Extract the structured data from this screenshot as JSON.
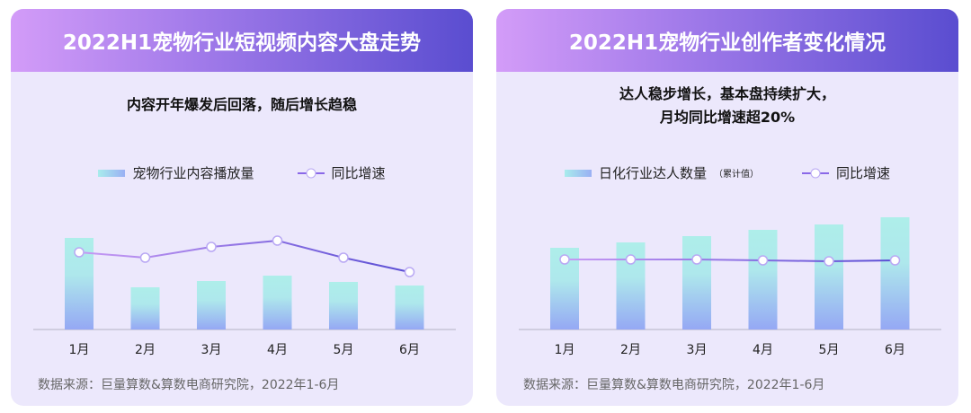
{
  "panels": [
    {
      "title": "2022H1宠物行业短视频内容大盘走势",
      "subtitle": [
        "内容开年爆发后回落，随后增长趋稳"
      ],
      "legend_bar": "宠物行业内容播放量",
      "legend_bar_note": "",
      "legend_line": "同比增速",
      "source": "数据来源：巨量算数&算数电商研究院，2022年1-6月"
    },
    {
      "title": "2022H1宠物行业创作者变化情况",
      "subtitle": [
        "达人稳步增长，基本盘持续扩大，",
        "月均同比增速超20%"
      ],
      "legend_bar": "日化行业达人数量",
      "legend_bar_note": "（累计值）",
      "legend_line": "同比增速",
      "source": "数据来源：巨量算数&算数电商研究院，2022年1-6月"
    }
  ],
  "chart_data": [
    {
      "type": "bar",
      "title": "2022H1宠物行业短视频内容大盘走势",
      "categories": [
        "1月",
        "2月",
        "3月",
        "4月",
        "5月",
        "6月"
      ],
      "series": [
        {
          "name": "宠物行业内容播放量",
          "type": "bar",
          "values": [
            102,
            47,
            54,
            60,
            53,
            49
          ]
        },
        {
          "name": "同比增速",
          "type": "line",
          "values": [
            86,
            80,
            92,
            99,
            80,
            64
          ]
        }
      ],
      "ylim": [
        0,
        127
      ],
      "note": "relative values, no axis labels shown"
    },
    {
      "type": "bar",
      "title": "2022H1宠物行业创作者变化情况",
      "categories": [
        "1月",
        "2月",
        "3月",
        "4月",
        "5月",
        "6月"
      ],
      "series": [
        {
          "name": "日化行业达人数量（累计值）",
          "type": "bar",
          "values": [
            91,
            97,
            104,
            111,
            117,
            125
          ]
        },
        {
          "name": "同比增速",
          "type": "line",
          "values": [
            78,
            78,
            78,
            77,
            76,
            77
          ]
        }
      ],
      "ylim": [
        0,
        127
      ],
      "note": "relative values, no axis labels shown"
    }
  ]
}
